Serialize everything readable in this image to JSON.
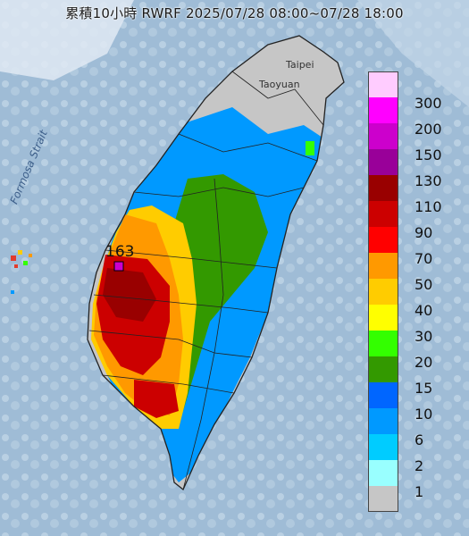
{
  "title": "累積10小時 RWRF 2025/07/28 08:00~07/28 18:00",
  "map_labels": {
    "strait": "Formosa Strait",
    "taipei": "Taipei",
    "taoyuan": "Taoyuan",
    "max_value": "163"
  },
  "legend": {
    "colors": [
      "#ffccff",
      "#ff00ff",
      "#cc00cc",
      "#990099",
      "#990000",
      "#cc0000",
      "#ff0000",
      "#ff9900",
      "#ffcc00",
      "#ffff00",
      "#33ff00",
      "#339900",
      "#0066ff",
      "#0099ff",
      "#00ccff",
      "#99ffff",
      "#c6c6c6"
    ],
    "labels": [
      "300",
      "200",
      "150",
      "130",
      "110",
      "90",
      "70",
      "50",
      "40",
      "30",
      "20",
      "15",
      "10",
      "6",
      "2",
      "1"
    ]
  }
}
